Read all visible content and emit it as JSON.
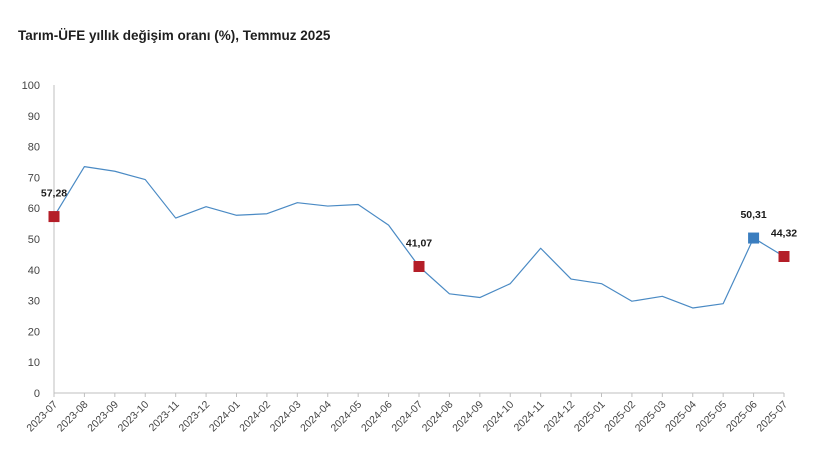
{
  "chart_data": {
    "type": "line",
    "title": "Tarım-ÜFE yıllık değişim oranı (%), Temmuz 2025",
    "xlabel": "",
    "ylabel": "",
    "ylim": [
      0,
      100
    ],
    "yticks": [
      0,
      10,
      20,
      30,
      40,
      50,
      60,
      70,
      80,
      90,
      100
    ],
    "grid": false,
    "legend": "none",
    "categories": [
      "2023-07",
      "2023-08",
      "2023-09",
      "2023-10",
      "2023-11",
      "2023-12",
      "2024-01",
      "2024-02",
      "2024-03",
      "2024-04",
      "2024-05",
      "2024-06",
      "2024-07",
      "2024-08",
      "2024-09",
      "2024-10",
      "2024-11",
      "2024-12",
      "2025-01",
      "2025-02",
      "2025-03",
      "2025-04",
      "2025-05",
      "2025-06",
      "2025-07"
    ],
    "series": [
      {
        "color": "#4a8ac4",
        "values": [
          57.28,
          73.5,
          72.0,
          69.3,
          56.8,
          60.5,
          57.7,
          58.2,
          61.8,
          60.7,
          61.2,
          54.5,
          41.07,
          32.2,
          31.0,
          35.5,
          47.0,
          37.0,
          35.5,
          29.8,
          31.4,
          27.6,
          29.0,
          50.31,
          44.32
        ]
      }
    ],
    "highlights": [
      {
        "index": 0,
        "label": "57,28",
        "color": "#b41e28"
      },
      {
        "index": 12,
        "label": "41,07",
        "color": "#b41e28"
      },
      {
        "index": 23,
        "label": "50,31",
        "color": "#3a7dbf"
      },
      {
        "index": 24,
        "label": "44,32",
        "color": "#b41e28"
      }
    ]
  }
}
